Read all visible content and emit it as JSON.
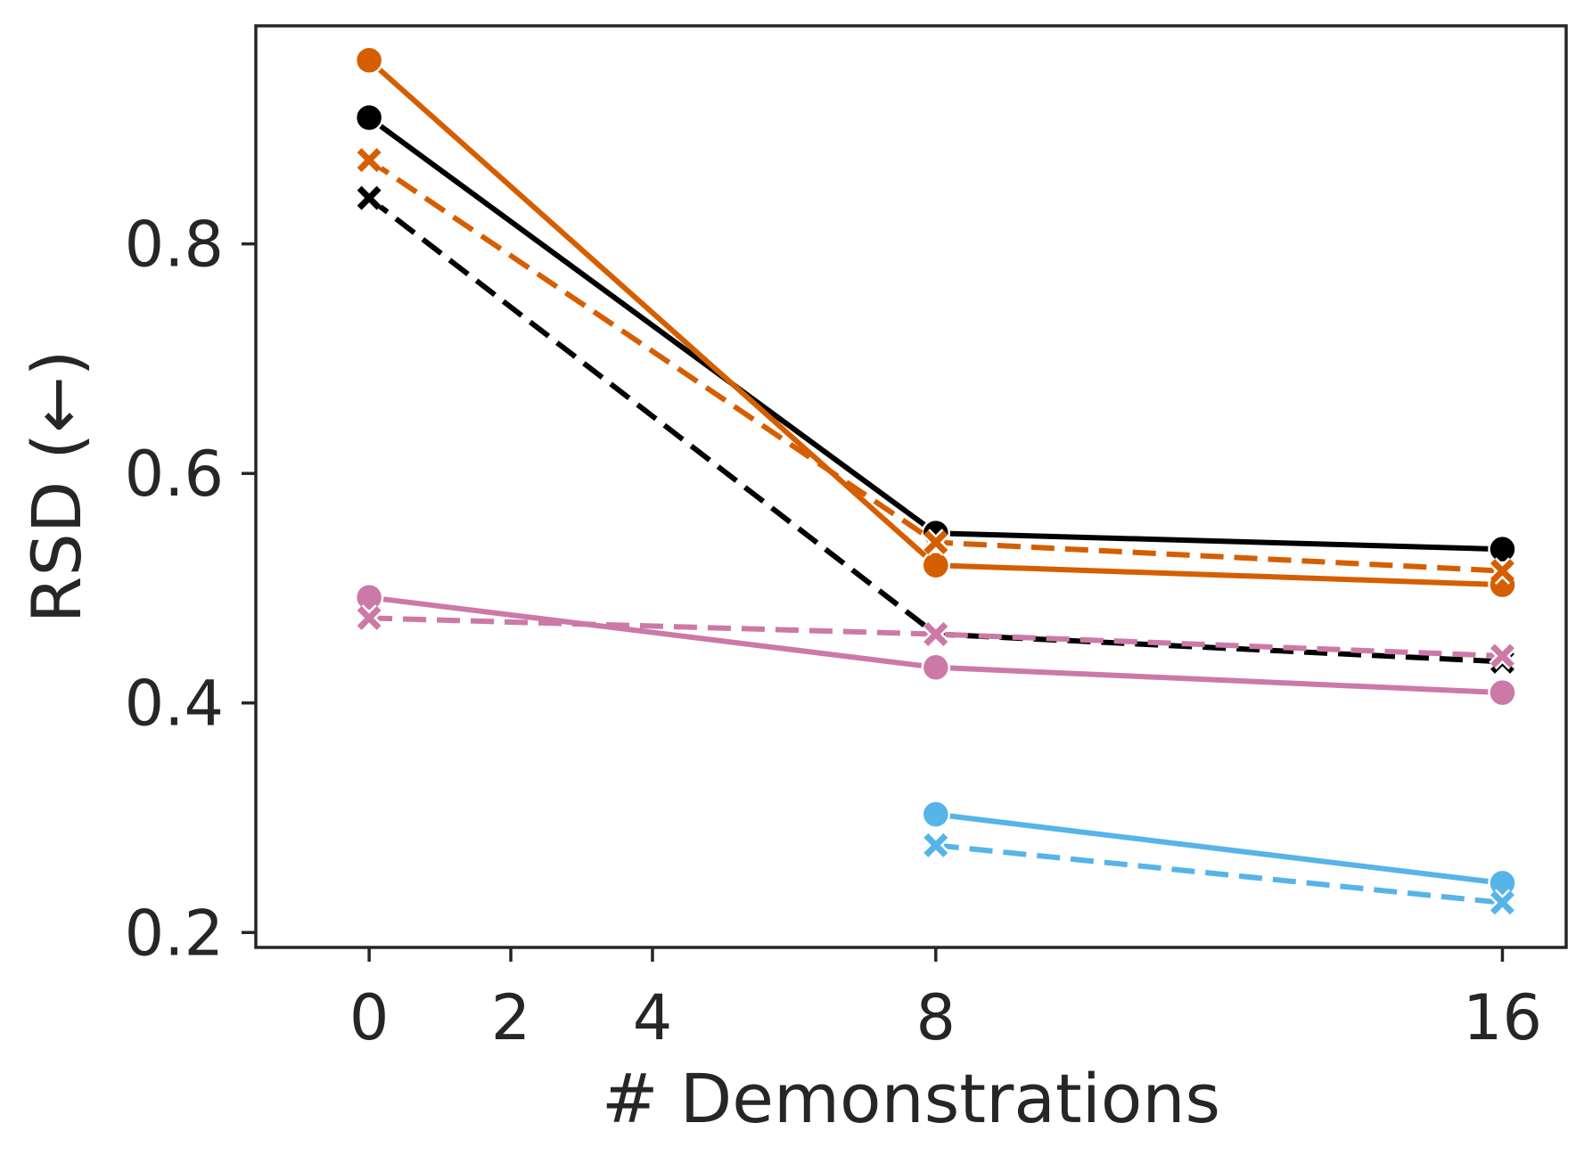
{
  "chart_data": {
    "type": "line",
    "title": "",
    "xlabel": "# Demonstrations",
    "ylabel": "RSD (←)",
    "x_ticks": [
      0,
      2,
      4,
      8,
      16
    ],
    "y_ticks": [
      0.2,
      0.4,
      0.6,
      0.8
    ],
    "y_tick_labels": [
      "0.2",
      "0.4",
      "0.6",
      "0.8"
    ],
    "x_tick_labels": [
      "0",
      "2",
      "4",
      "8",
      "16"
    ],
    "xlim": [
      -1.6,
      16.9
    ],
    "ylim": [
      0.187,
      0.99
    ],
    "grid": false,
    "legend": "none",
    "series": [
      {
        "name": "black-solid",
        "color": "#000000",
        "dash": "solid",
        "marker": "circle",
        "x": [
          0,
          8,
          16
        ],
        "y": [
          0.91,
          0.548,
          0.534
        ]
      },
      {
        "name": "black-dashed",
        "color": "#000000",
        "dash": "dashed",
        "marker": "x",
        "x": [
          0,
          8,
          16
        ],
        "y": [
          0.84,
          0.46,
          0.436
        ]
      },
      {
        "name": "orange-solid",
        "color": "#d55e00",
        "dash": "solid",
        "marker": "circle",
        "x": [
          0,
          8,
          16
        ],
        "y": [
          0.96,
          0.52,
          0.503
        ]
      },
      {
        "name": "orange-dashed",
        "color": "#d55e00",
        "dash": "dashed",
        "marker": "x",
        "x": [
          0,
          8,
          16
        ],
        "y": [
          0.873,
          0.54,
          0.515
        ]
      },
      {
        "name": "pink-solid",
        "color": "#cc79a7",
        "dash": "solid",
        "marker": "circle",
        "x": [
          0,
          8,
          16
        ],
        "y": [
          0.492,
          0.431,
          0.409
        ]
      },
      {
        "name": "pink-dashed",
        "color": "#cc79a7",
        "dash": "dashed",
        "marker": "x",
        "x": [
          0,
          8,
          16
        ],
        "y": [
          0.474,
          0.46,
          0.441
        ]
      },
      {
        "name": "blue-solid",
        "color": "#56b4e9",
        "dash": "solid",
        "marker": "circle",
        "x": [
          8,
          16
        ],
        "y": [
          0.303,
          0.243
        ]
      },
      {
        "name": "blue-dashed",
        "color": "#56b4e9",
        "dash": "dashed",
        "marker": "x",
        "x": [
          8,
          16
        ],
        "y": [
          0.276,
          0.226
        ]
      }
    ]
  }
}
